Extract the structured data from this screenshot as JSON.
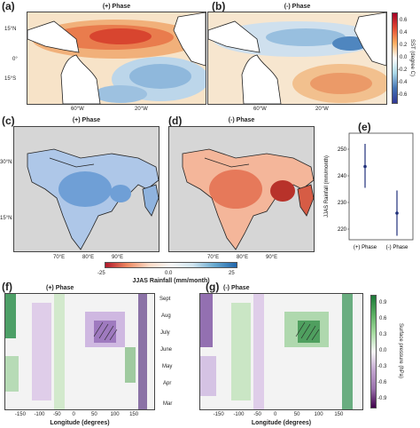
{
  "panels": {
    "a": {
      "label": "(a)",
      "title": "(+) Phase",
      "lat_ticks": [
        "15°N",
        "0°",
        "15°S"
      ],
      "lon_ticks": [
        "60°W",
        "20°W"
      ]
    },
    "b": {
      "label": "(b)",
      "title": "(-) Phase",
      "lon_ticks": [
        "60°W",
        "20°W"
      ]
    },
    "c": {
      "label": "(c)",
      "title": "(+) Phase",
      "lat_ticks": [
        "30°N",
        "15°N"
      ],
      "lon_ticks": [
        "70°E",
        "80°E",
        "90°E"
      ]
    },
    "d": {
      "label": "(d)",
      "title": "(-) Phase",
      "lon_ticks": [
        "70°E",
        "80°E",
        "90°E"
      ]
    },
    "e": {
      "label": "(e)"
    },
    "f": {
      "label": "(f)",
      "title": "(+) Phase"
    },
    "g": {
      "label": "(g)",
      "title": "(-) Phase"
    }
  },
  "sst_colorbar": {
    "label": "SST (degree C)",
    "ticks": [
      "0.6",
      "0.4",
      "0.2",
      "0.0",
      "-0.2",
      "-0.4",
      "-0.6"
    ]
  },
  "rain_colorbar": {
    "label": "JJAS Rainfall (mm/month)",
    "ticks": [
      "-25",
      "0.0",
      "25"
    ]
  },
  "sp_colorbar": {
    "label": "Surface pressure (hPa)",
    "ticks": [
      "0.9",
      "0.6",
      "0.3",
      "0.0",
      "-0.3",
      "-0.6",
      "-0.9"
    ]
  },
  "hovmoller": {
    "xlabel": "Longitude (degrees)",
    "x_ticks": [
      "-150",
      "-100",
      "-50",
      "0",
      "50",
      "100",
      "150"
    ],
    "months": [
      "Sept",
      "Aug",
      "July",
      "June",
      "May",
      "Apr",
      "Mar"
    ]
  },
  "chart_data": [
    {
      "type": "scatter",
      "panel": "e",
      "categories": [
        "(+) Phase",
        "(-) Phase"
      ],
      "values": [
        243.5,
        226.0
      ],
      "error_low": [
        235.5,
        217.5
      ],
      "error_high": [
        252.0,
        234.5
      ],
      "ylabel": "JJAS Rainfall (mm/month)",
      "ylim": [
        216,
        256
      ],
      "yticks": [
        "250",
        "240",
        "230",
        "220"
      ],
      "color": "#1f2f7a"
    }
  ]
}
